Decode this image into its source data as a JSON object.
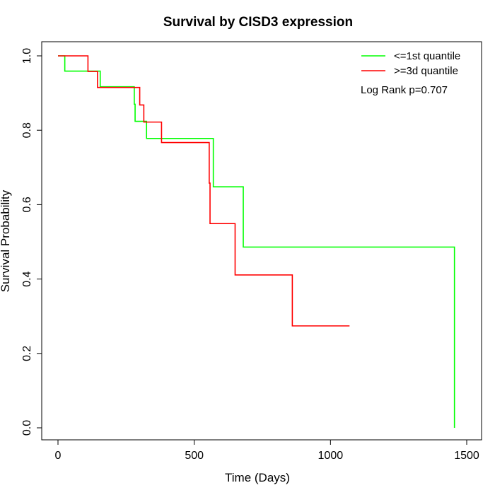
{
  "chart_data": {
    "type": "line",
    "step": true,
    "title": "Survival by CISD3 expression",
    "xlabel": "Time (Days)",
    "ylabel": "Survival Probability",
    "xlim": [
      0,
      1500
    ],
    "ylim": [
      0,
      1
    ],
    "xticks": [
      0,
      500,
      1000,
      1500
    ],
    "yticks": [
      0.0,
      0.2,
      0.4,
      0.6,
      0.8,
      1.0
    ],
    "xtick_labels": [
      "0",
      "500",
      "1000",
      "1500"
    ],
    "ytick_labels": [
      "0.0",
      "0.2",
      "0.4",
      "0.6",
      "0.8",
      "1.0"
    ],
    "grid": false,
    "legend_position": "top-right",
    "annotation": "Log Rank p=0.707",
    "series": [
      {
        "name": "<=1st quantile",
        "color": "#00ff00",
        "x": [
          0,
          25,
          155,
          280,
          283,
          325,
          570,
          680,
          1455,
          1455
        ],
        "y": [
          1.0,
          0.959,
          0.917,
          0.87,
          0.824,
          0.778,
          0.648,
          0.486,
          0.486,
          0.0
        ]
      },
      {
        "name": ">=3d quantile",
        "color": "#ff0000",
        "x": [
          0,
          110,
          145,
          300,
          315,
          380,
          555,
          558,
          650,
          860,
          1070
        ],
        "y": [
          1.0,
          0.958,
          0.915,
          0.868,
          0.822,
          0.767,
          0.658,
          0.549,
          0.411,
          0.274,
          0.274
        ]
      }
    ]
  }
}
